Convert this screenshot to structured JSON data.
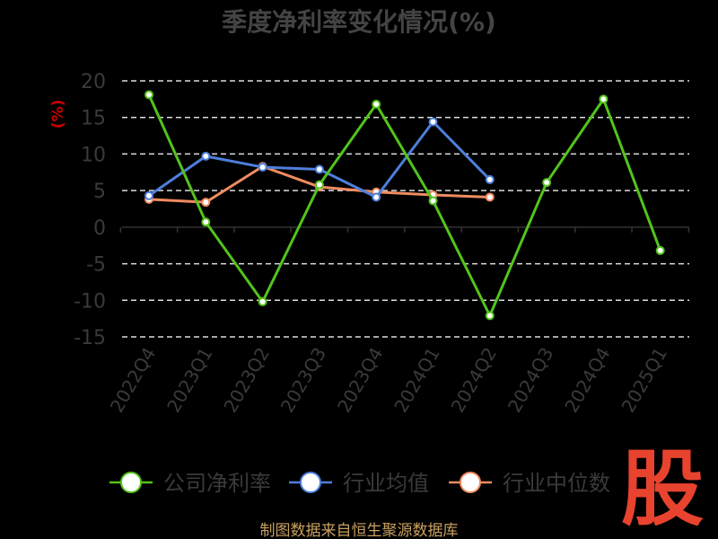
{
  "chart_data": {
    "type": "line",
    "title": "季度净利率变化情况(%)",
    "ylabel": "(%)",
    "xlabel": "",
    "categories": [
      "2022Q4",
      "2023Q1",
      "2023Q2",
      "2023Q3",
      "2023Q4",
      "2024Q1",
      "2024Q2",
      "2024Q3",
      "2024Q4",
      "2025Q1"
    ],
    "ylim": [
      -15,
      20
    ],
    "yticks": [
      20,
      15,
      10,
      5,
      0,
      -5,
      -10,
      -15
    ],
    "grid": true,
    "legend_position": "bottom",
    "series": [
      {
        "name": "公司净利率",
        "color": "#52c41a",
        "values": [
          18.1,
          0.7,
          -10.2,
          5.8,
          16.8,
          3.6,
          -12.1,
          6.1,
          17.5,
          -3.2
        ]
      },
      {
        "name": "行业均值",
        "color": "#4e7fdc",
        "values": [
          4.3,
          9.7,
          8.2,
          7.9,
          4.1,
          14.4,
          6.5,
          null,
          null,
          null
        ]
      },
      {
        "name": "行业中位数",
        "color": "#f08c60",
        "values": [
          3.8,
          3.4,
          8.3,
          5.5,
          4.8,
          4.4,
          4.1,
          null,
          null,
          null
        ]
      }
    ]
  },
  "logo_text": "股",
  "source": "制图数据来自恒生聚源数据库"
}
